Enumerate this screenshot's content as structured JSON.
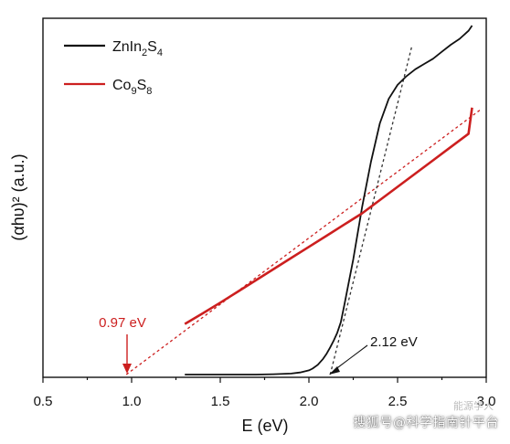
{
  "chart_data": {
    "type": "line",
    "xlabel": "E (eV)",
    "ylabel": "(αhυ)² (a.u.)",
    "xlim": [
      0.5,
      3.0
    ],
    "ylim": [
      0,
      1
    ],
    "x_ticks": [
      "0.5",
      "1.0",
      "1.5",
      "2.0",
      "2.5",
      "3.0"
    ],
    "y_ticks_visible": false,
    "grid": false,
    "legend_position": "top-left",
    "series": [
      {
        "name": "ZnIn2S4",
        "legend_label": "ZnIn",
        "legend_sub1": "2",
        "legend_mid": "S",
        "legend_sub2": "4",
        "color": "#111111",
        "x": [
          1.3,
          1.5,
          1.7,
          1.8,
          1.9,
          1.95,
          2.0,
          2.02,
          2.05,
          2.08,
          2.1,
          2.12,
          2.14,
          2.16,
          2.18,
          2.2,
          2.25,
          2.3,
          2.35,
          2.4,
          2.45,
          2.5,
          2.55,
          2.6,
          2.65,
          2.7,
          2.75,
          2.8,
          2.85,
          2.9,
          2.92
        ],
        "y": [
          0.0,
          0.0,
          0.0,
          0.001,
          0.003,
          0.006,
          0.012,
          0.017,
          0.028,
          0.045,
          0.06,
          0.078,
          0.098,
          0.12,
          0.15,
          0.2,
          0.33,
          0.48,
          0.61,
          0.72,
          0.79,
          0.83,
          0.855,
          0.875,
          0.89,
          0.905,
          0.925,
          0.945,
          0.962,
          0.985,
          1.0
        ]
      },
      {
        "name": "Co9S8",
        "legend_label": "Co",
        "legend_sub1": "9",
        "legend_mid": "S",
        "legend_sub2": "8",
        "color": "#cc1f1f",
        "x": [
          1.3,
          1.4,
          1.5,
          1.6,
          1.7,
          1.8,
          1.9,
          2.0,
          2.1,
          2.2,
          2.3,
          2.4,
          2.5,
          2.6,
          2.7,
          2.8,
          2.9,
          2.92
        ],
        "y": [
          0.145,
          0.175,
          0.206,
          0.238,
          0.27,
          0.302,
          0.334,
          0.366,
          0.398,
          0.43,
          0.462,
          0.5,
          0.538,
          0.576,
          0.614,
          0.652,
          0.69,
          0.765
        ]
      }
    ],
    "fits": [
      {
        "series": "Co9S8",
        "color": "#cc1f1f",
        "x": [
          0.97,
          2.97
        ],
        "y": [
          0.0,
          0.76
        ]
      },
      {
        "series": "ZnIn2S4",
        "color": "#333333",
        "x": [
          2.12,
          2.58
        ],
        "y": [
          0.0,
          0.94
        ]
      }
    ],
    "annotations": [
      {
        "text": "0.97 eV",
        "x": 0.97,
        "color": "#cc1f1f"
      },
      {
        "text": "2.12 eV",
        "x": 2.12,
        "color": "#111111"
      }
    ]
  },
  "watermark": {
    "main": "搜狐号@科学指南针平台",
    "top": "能源学人"
  }
}
